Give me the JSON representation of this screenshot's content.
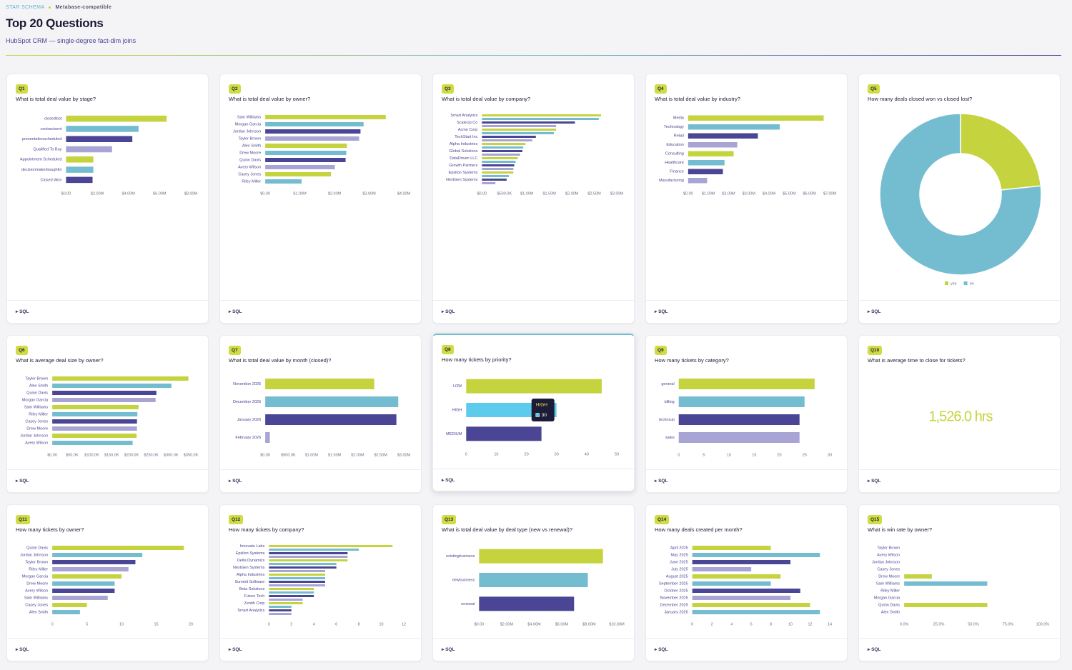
{
  "header": {
    "kicker": "STAR SCHEMA",
    "tag": "Metabase-compatible",
    "title": "Top 20 Questions",
    "subtitle": "HubSpot CRM — single-degree fact-dim joins"
  },
  "cards": [
    {
      "label": "Q1",
      "question": "What is total deal value by stage?",
      "sql": "SQL",
      "chart": {
        "type": "hbar",
        "categories": [
          "closedlost",
          "contractsent",
          "presentationscheduled",
          "Qualified To Buy",
          "Appointment Scheduled",
          "decisionmakerboughtin",
          "Closed Won"
        ],
        "values": [
          6450000,
          4650000,
          4250000,
          2950000,
          1750000,
          1750000,
          1700000
        ],
        "colors": [
          "#c5d43e",
          "#74bdd0",
          "#4b4595",
          "#a8a4d4"
        ],
        "xlim": [
          0,
          8000000
        ],
        "xticks": [
          {
            "value": 0,
            "label": "$0.00"
          },
          {
            "value": 2000000,
            "label": "$2.00M"
          },
          {
            "value": 4000000,
            "label": "$4.00M"
          },
          {
            "value": 6000000,
            "label": "$6.00M"
          },
          {
            "value": 8000000,
            "label": "$8.00M"
          }
        ]
      }
    },
    {
      "label": "Q2",
      "question": "What is total deal value by owner?",
      "sql": "SQL",
      "chart": {
        "type": "hbar",
        "categories": [
          "Sam Williams",
          "Morgan Garcia",
          "Jordan Johnson",
          "Taylor Brown",
          "Alex Smith",
          "Drew Moore",
          "Quinn Davis",
          "Avery Wilson",
          "Casey Jones",
          "Riley Miller"
        ],
        "values": [
          3480000,
          2840000,
          2750000,
          2710000,
          2360000,
          2340000,
          2320000,
          2010000,
          1900000,
          1050000
        ],
        "colors": [
          "#c5d43e",
          "#74bdd0",
          "#4b4595",
          "#a8a4d4"
        ],
        "xlim": [
          0,
          4000000
        ],
        "xticks": [
          {
            "value": 0,
            "label": "$0.00"
          },
          {
            "value": 1000000,
            "label": "$1.00M"
          },
          {
            "value": 2000000,
            "label": "$2.00M"
          },
          {
            "value": 3000000,
            "label": "$3.00M"
          },
          {
            "value": 4000000,
            "label": "$4.00M"
          }
        ]
      }
    },
    {
      "label": "Q3",
      "question": "What is total deal value by company?",
      "sql": "SQL",
      "chart": {
        "type": "hbar",
        "categories": [
          "Smart Analytics",
          null,
          "ScaleUp Co",
          null,
          "Acme Corp",
          null,
          "TechStart Inc",
          null,
          "Alpha Industries",
          null,
          "Global Solutions",
          null,
          "DataDriven LLC",
          null,
          "Growth Partners",
          null,
          "Epsilon Systems",
          null,
          "NextGen Systems",
          null
        ],
        "values": [
          2650000,
          2600000,
          2070000,
          1650000,
          1650000,
          1600000,
          1200000,
          1120000,
          970000,
          920000,
          900000,
          850000,
          800000,
          750000,
          720000,
          700000,
          700000,
          600000,
          550000,
          300000
        ],
        "colors": [
          "#c5d43e",
          "#74bdd0",
          "#4b4595",
          "#a8a4d4"
        ],
        "xlim": [
          0,
          3000000
        ],
        "xticks": [
          {
            "value": 0,
            "label": "$0.00"
          },
          {
            "value": 500000,
            "label": "$500.0K"
          },
          {
            "value": 1000000,
            "label": "$1.00M"
          },
          {
            "value": 1500000,
            "label": "$1.50M"
          },
          {
            "value": 2000000,
            "label": "$2.00M"
          },
          {
            "value": 2500000,
            "label": "$2.50M"
          },
          {
            "value": 3000000,
            "label": "$3.00M"
          }
        ]
      }
    },
    {
      "label": "Q4",
      "question": "What is total deal value by industry?",
      "sql": "SQL",
      "chart": {
        "type": "hbar",
        "categories": [
          "Media",
          "Technology",
          "Retail",
          "Education",
          "Consulting",
          "Healthcare",
          "Finance",
          "Manufacturing"
        ],
        "values": [
          6700000,
          4530000,
          3450000,
          2430000,
          2250000,
          1800000,
          1720000,
          940000
        ],
        "colors": [
          "#c5d43e",
          "#74bdd0",
          "#4b4595",
          "#a8a4d4"
        ],
        "xlim": [
          0,
          7000000
        ],
        "xticks": [
          {
            "value": 0,
            "label": "$0.00"
          },
          {
            "value": 1000000,
            "label": "$1.00M"
          },
          {
            "value": 2000000,
            "label": "$2.00M"
          },
          {
            "value": 3000000,
            "label": "$3.00M"
          },
          {
            "value": 4000000,
            "label": "$4.00M"
          },
          {
            "value": 5000000,
            "label": "$5.00M"
          },
          {
            "value": 6000000,
            "label": "$6.00M"
          },
          {
            "value": 7000000,
            "label": "$7.00M"
          }
        ]
      }
    },
    {
      "label": "Q5",
      "question": "How many deals closed won vs closed lost?",
      "sql": "SQL",
      "chart": {
        "type": "donut",
        "categories": [
          "yes",
          "no"
        ],
        "values": [
          7,
          23
        ],
        "colors": [
          "#c5d43e",
          "#74bdd0"
        ]
      }
    },
    {
      "label": "Q6",
      "question": "What is average deal size by owner?",
      "sql": "SQL",
      "chart": {
        "type": "hbar",
        "categories": [
          "Taylor Brown",
          "Alex Smith",
          "Quinn Davis",
          "Morgan Garcia",
          "Sam Williams",
          "Riley Miller",
          "Casey Jones",
          "Drew Moore",
          "Jordan Johnson",
          "Avery Wilson"
        ],
        "values": [
          344000,
          301000,
          263000,
          261000,
          218000,
          215000,
          214000,
          214000,
          213000,
          203000
        ],
        "colors": [
          "#c5d43e",
          "#74bdd0",
          "#4b4595",
          "#a8a4d4"
        ],
        "xlim": [
          0,
          350000
        ],
        "xticks": [
          {
            "value": 0,
            "label": "$0.00"
          },
          {
            "value": 50000,
            "label": "$50.0K"
          },
          {
            "value": 100000,
            "label": "$100.0K"
          },
          {
            "value": 150000,
            "label": "$150.0K"
          },
          {
            "value": 200000,
            "label": "$200.0K"
          },
          {
            "value": 250000,
            "label": "$250.0K"
          },
          {
            "value": 300000,
            "label": "$300.0K"
          },
          {
            "value": 350000,
            "label": "$350.0K"
          }
        ]
      }
    },
    {
      "label": "Q7",
      "question": "What is total deal value by month (closed)?",
      "sql": "SQL",
      "chart": {
        "type": "hbar",
        "categories": [
          "November 2025",
          "December 2025",
          "January 2026",
          "February 2026"
        ],
        "values": [
          2360000,
          2880000,
          2840000,
          100000
        ],
        "colors": [
          "#c5d43e",
          "#74bdd0",
          "#4b4595",
          "#a8a4d4"
        ],
        "xlim": [
          0,
          3000000
        ],
        "xticks": [
          {
            "value": 0,
            "label": "$0.00"
          },
          {
            "value": 500000,
            "label": "$500.0K"
          },
          {
            "value": 1000000,
            "label": "$1.00M"
          },
          {
            "value": 1500000,
            "label": "$1.50M"
          },
          {
            "value": 2000000,
            "label": "$2.00M"
          },
          {
            "value": 2500000,
            "label": "$2.50M"
          },
          {
            "value": 3000000,
            "label": "$3.00M"
          }
        ]
      }
    },
    {
      "label": "Q8",
      "question": "How many tickets by priority?",
      "sql": "SQL",
      "chart": {
        "type": "hbar",
        "categories": [
          "LOW",
          "HIGH",
          "MEDIUM"
        ],
        "values": [
          45,
          30,
          25
        ],
        "colors": [
          "#c5d43e",
          "#5ccbec",
          "#4b4595"
        ],
        "xlim": [
          0,
          50
        ],
        "xticks": [
          0,
          10,
          20,
          30,
          40,
          50
        ],
        "hover": 1
      }
    },
    {
      "label": "Q9",
      "question": "How many tickets by category?",
      "sql": "SQL",
      "chart": {
        "type": "hbar",
        "categories": [
          "general",
          "billing",
          "technical",
          "sales"
        ],
        "values": [
          27,
          25,
          24,
          24
        ],
        "colors": [
          "#c5d43e",
          "#74bdd0",
          "#4b4595",
          "#a8a4d4"
        ],
        "xlim": [
          0,
          30
        ],
        "xticks": [
          0,
          5,
          10,
          15,
          20,
          25,
          30
        ]
      }
    },
    {
      "label": "Q10",
      "question": "What is average time to close for tickets?",
      "sql": "SQL",
      "chart": {
        "type": "metric",
        "value": 1526,
        "value_label": "1,526.0 hrs",
        "color": "#c5d43e"
      }
    },
    {
      "label": "Q11",
      "question": "How many tickets by owner?",
      "sql": "SQL",
      "chart": {
        "type": "hbar",
        "categories": [
          "Quinn Davis",
          "Jordan Johnson",
          "Taylor Brown",
          "Riley Miller",
          "Morgan Garcia",
          "Drew Moore",
          "Avery Wilson",
          "Sam Williams",
          "Casey Jones",
          "Alex Smith"
        ],
        "values": [
          19,
          13,
          12,
          11,
          10,
          9,
          9,
          8,
          5,
          4
        ],
        "colors": [
          "#c5d43e",
          "#74bdd0",
          "#4b4595",
          "#a8a4d4"
        ],
        "xlim": [
          0,
          20
        ],
        "xticks": [
          0,
          5,
          10,
          15,
          20
        ]
      }
    },
    {
      "label": "Q12",
      "question": "How many tickets by company?",
      "sql": "SQL",
      "chart": {
        "type": "hbar",
        "categories": [
          "Innovate Labs",
          null,
          "Epsilon Systems",
          null,
          "Delta Dynamics",
          null,
          "NextGen Systems",
          null,
          "Alpha Industries",
          null,
          "Summit Software",
          null,
          "Beta Solutions",
          null,
          "Future Tech",
          null,
          "Zenith Corp",
          null,
          "Smart Analytics",
          null
        ],
        "values": [
          11,
          8,
          7,
          7,
          7,
          6,
          6,
          5,
          5,
          5,
          5,
          5,
          4,
          4,
          4,
          3,
          3,
          2,
          2,
          2
        ],
        "colors": [
          "#c5d43e",
          "#74bdd0",
          "#4b4595",
          "#a8a4d4"
        ],
        "xlim": [
          0,
          12
        ],
        "xticks": [
          0,
          2,
          4,
          6,
          8,
          10,
          12
        ]
      }
    },
    {
      "label": "Q13",
      "question": "What is total deal value by deal type (new vs renewal)?",
      "sql": "SQL",
      "chart": {
        "type": "hbar",
        "categories": [
          "existingbusiness",
          "newbusiness",
          "renewal"
        ],
        "values": [
          9000000,
          7900000,
          6900000
        ],
        "colors": [
          "#c5d43e",
          "#74bdd0",
          "#4b4595"
        ],
        "xlim": [
          0,
          10000000
        ],
        "xticks": [
          {
            "value": 0,
            "label": "$0.00"
          },
          {
            "value": 2000000,
            "label": "$2.00M"
          },
          {
            "value": 4000000,
            "label": "$4.00M"
          },
          {
            "value": 6000000,
            "label": "$6.00M"
          },
          {
            "value": 8000000,
            "label": "$8.00M"
          },
          {
            "value": 10000000,
            "label": "$10.00M"
          }
        ]
      }
    },
    {
      "label": "Q14",
      "question": "How many deals created per month?",
      "sql": "SQL",
      "chart": {
        "type": "hbar",
        "categories": [
          "April 2025",
          "May 2025",
          "June 2025",
          "July 2025",
          "August 2025",
          "September 2025",
          "October 2025",
          "November 2025",
          "December 2025",
          "January 2026"
        ],
        "values": [
          8,
          13,
          10,
          6,
          9,
          8,
          11,
          10,
          12,
          13
        ],
        "colors": [
          "#c5d43e",
          "#74bdd0",
          "#4b4595",
          "#a8a4d4"
        ],
        "xlim": [
          0,
          14
        ],
        "xticks": [
          0,
          2,
          4,
          6,
          8,
          10,
          12,
          14
        ]
      }
    },
    {
      "label": "Q15",
      "question": "What is win rate by owner?",
      "sql": "SQL",
      "chart": {
        "type": "hbar",
        "categories": [
          "Taylor Brown",
          "Avery Wilson",
          "Jordan Johnson",
          "Casey Jones",
          "Drew Moore",
          "Sam Williams",
          "Riley Miller",
          "Morgan Garcia",
          "Quinn Davis",
          "Alex Smith"
        ],
        "values": [
          0,
          0,
          0,
          0,
          20,
          60,
          0,
          0,
          60,
          0
        ],
        "colors": [
          "#c5d43e",
          "#74bdd0",
          "#4b4595",
          "#a8a4d4"
        ],
        "xlim": [
          0,
          100
        ],
        "xticks": [
          {
            "value": 0,
            "label": "0.0%"
          },
          {
            "value": 25,
            "label": "25.0%"
          },
          {
            "value": 50,
            "label": "50.0%"
          },
          {
            "value": 75,
            "label": "75.0%"
          },
          {
            "value": 100,
            "label": "100.0%"
          }
        ]
      }
    }
  ]
}
